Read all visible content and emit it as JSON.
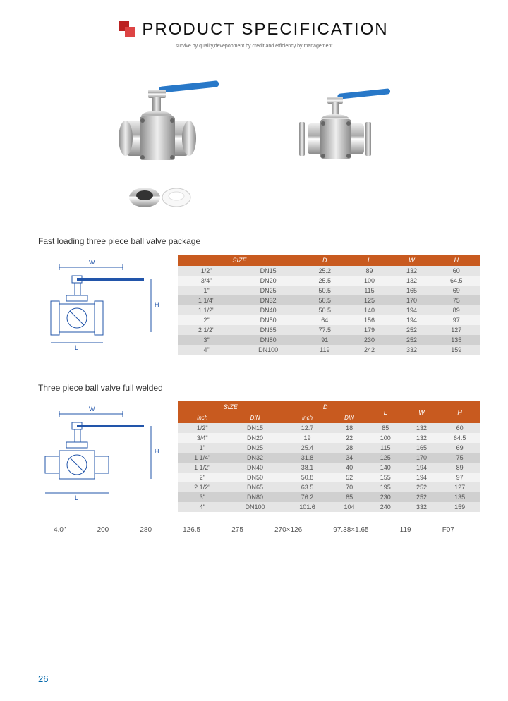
{
  "header": {
    "title_bold": "PRODUCT",
    "title_thin": "SPECIFICATION",
    "tagline": "survive by quality,devepopment by credit,and efficiency by management"
  },
  "section1": {
    "title": "Fast loading three piece ball valve package",
    "table": {
      "columns": [
        "SIZE",
        "",
        "D",
        "L",
        "W",
        "H"
      ],
      "rows": [
        [
          "1/2\"",
          "DN15",
          "25.2",
          "89",
          "132",
          "60"
        ],
        [
          "3/4\"",
          "DN20",
          "25.5",
          "100",
          "132",
          "64.5"
        ],
        [
          "1\"",
          "DN25",
          "50.5",
          "115",
          "165",
          "69"
        ],
        [
          "1 1/4\"",
          "DN32",
          "50.5",
          "125",
          "170",
          "75"
        ],
        [
          "1 1/2\"",
          "DN40",
          "50.5",
          "140",
          "194",
          "89"
        ],
        [
          "2\"",
          "DN50",
          "64",
          "156",
          "194",
          "97"
        ],
        [
          "2 1/2\"",
          "DN65",
          "77.5",
          "179",
          "252",
          "127"
        ],
        [
          "3\"",
          "DN80",
          "91",
          "230",
          "252",
          "135"
        ],
        [
          "4\"",
          "DN100",
          "119",
          "242",
          "332",
          "159"
        ]
      ]
    }
  },
  "section2": {
    "title": "Three piece ball valve full welded",
    "table": {
      "columns": [
        "SIZE",
        "D",
        "L",
        "W",
        "H"
      ],
      "subcolumns": [
        "Inch",
        "DIN",
        "Inch",
        "DIN",
        "",
        "",
        ""
      ],
      "rows": [
        [
          "1/2\"",
          "DN15",
          "12.7",
          "18",
          "85",
          "132",
          "60"
        ],
        [
          "3/4\"",
          "DN20",
          "19",
          "22",
          "100",
          "132",
          "64.5"
        ],
        [
          "1\"",
          "DN25",
          "25.4",
          "28",
          "115",
          "165",
          "69"
        ],
        [
          "1 1/4\"",
          "DN32",
          "31.8",
          "34",
          "125",
          "170",
          "75"
        ],
        [
          "1 1/2\"",
          "DN40",
          "38.1",
          "40",
          "140",
          "194",
          "89"
        ],
        [
          "2\"",
          "DN50",
          "50.8",
          "52",
          "155",
          "194",
          "97"
        ],
        [
          "2 1/2\"",
          "DN65",
          "63.5",
          "70",
          "195",
          "252",
          "127"
        ],
        [
          "3\"",
          "DN80",
          "76.2",
          "85",
          "230",
          "252",
          "135"
        ],
        [
          "4\"",
          "DN100",
          "101.6",
          "104",
          "240",
          "332",
          "159"
        ]
      ]
    }
  },
  "bottom_row": [
    "4.0\"",
    "200",
    "280",
    "126.5",
    "275",
    "270×126",
    "97.38×1.65",
    "119",
    "F07"
  ],
  "page_number": "26"
}
